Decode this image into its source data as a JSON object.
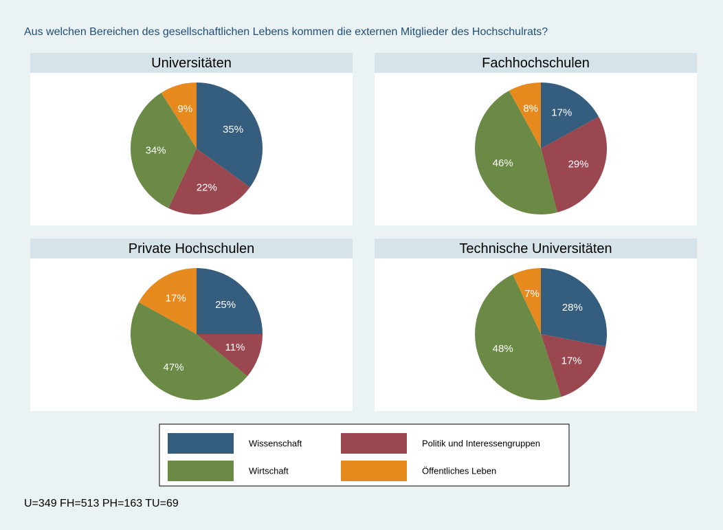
{
  "title": "Aus welchen Bereichen des gesellschaftlichen Lebens kommen die externen Mitglieder des Hochschulrats?",
  "note": "U=349 FH=513 PH=163 TU=69",
  "chart_data": [
    {
      "type": "pie",
      "title": "Universitäten",
      "categories": [
        "Wissenschaft",
        "Politik und Interessengruppen",
        "Wirtschaft",
        "Öffentliches Leben"
      ],
      "colors": [
        "#355d7e",
        "#9b4750",
        "#6a8a45",
        "#e68a1e"
      ],
      "values": [
        35,
        22,
        34,
        9
      ],
      "value_labels": [
        "35%",
        "22%",
        "34%",
        "9%"
      ]
    },
    {
      "type": "pie",
      "title": "Fachhochschulen",
      "categories": [
        "Wissenschaft",
        "Politik und Interessengruppen",
        "Wirtschaft",
        "Öffentliches Leben"
      ],
      "colors": [
        "#355d7e",
        "#9b4750",
        "#6a8a45",
        "#e68a1e"
      ],
      "values": [
        17,
        29,
        46,
        8
      ],
      "value_labels": [
        "17%",
        "29%",
        "46%",
        "8%"
      ]
    },
    {
      "type": "pie",
      "title": "Private Hochschulen",
      "categories": [
        "Wissenschaft",
        "Politik und Interessengruppen",
        "Wirtschaft",
        "Öffentliches Leben"
      ],
      "colors": [
        "#355d7e",
        "#9b4750",
        "#6a8a45",
        "#e68a1e"
      ],
      "values": [
        25,
        11,
        47,
        17
      ],
      "value_labels": [
        "25%",
        "11%",
        "47%",
        "17%"
      ]
    },
    {
      "type": "pie",
      "title": "Technische Universitäten",
      "categories": [
        "Wissenschaft",
        "Politik und Interessengruppen",
        "Wirtschaft",
        "Öffentliches Leben"
      ],
      "colors": [
        "#355d7e",
        "#9b4750",
        "#6a8a45",
        "#e68a1e"
      ],
      "values": [
        28,
        17,
        48,
        7
      ],
      "value_labels": [
        "28%",
        "17%",
        "48%",
        "7%"
      ]
    }
  ]
}
